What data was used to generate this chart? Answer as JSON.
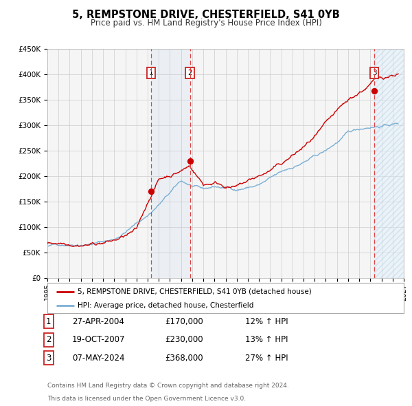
{
  "title": "5, REMPSTONE DRIVE, CHESTERFIELD, S41 0YB",
  "subtitle": "Price paid vs. HM Land Registry's House Price Index (HPI)",
  "xlim": [
    1995,
    2027
  ],
  "ylim": [
    0,
    450000
  ],
  "yticks": [
    0,
    50000,
    100000,
    150000,
    200000,
    250000,
    300000,
    350000,
    400000,
    450000
  ],
  "ytick_labels": [
    "£0",
    "£50K",
    "£100K",
    "£150K",
    "£200K",
    "£250K",
    "£300K",
    "£350K",
    "£400K",
    "£450K"
  ],
  "xticks": [
    1995,
    1996,
    1997,
    1998,
    1999,
    2000,
    2001,
    2002,
    2003,
    2004,
    2005,
    2006,
    2007,
    2008,
    2009,
    2010,
    2011,
    2012,
    2013,
    2014,
    2015,
    2016,
    2017,
    2018,
    2019,
    2020,
    2021,
    2022,
    2023,
    2024,
    2025,
    2026,
    2027
  ],
  "property_color": "#cc0000",
  "hpi_color": "#7bafd4",
  "background_color": "#f5f5f5",
  "grid_color": "#cccccc",
  "sale1_x": 2004.32,
  "sale1_y": 170000,
  "sale2_x": 2007.8,
  "sale2_y": 230000,
  "sale3_x": 2024.35,
  "sale3_y": 368000,
  "sale1_date": "27-APR-2004",
  "sale1_price": "£170,000",
  "sale1_hpi_pct": "12% ↑ HPI",
  "sale2_date": "19-OCT-2007",
  "sale2_price": "£230,000",
  "sale2_hpi_pct": "13% ↑ HPI",
  "sale3_date": "07-MAY-2024",
  "sale3_price": "£368,000",
  "sale3_hpi_pct": "27% ↑ HPI",
  "legend_line1": "5, REMPSTONE DRIVE, CHESTERFIELD, S41 0YB (detached house)",
  "legend_line2": "HPI: Average price, detached house, Chesterfield",
  "footer1": "Contains HM Land Registry data © Crown copyright and database right 2024.",
  "footer2": "This data is licensed under the Open Government Licence v3.0."
}
